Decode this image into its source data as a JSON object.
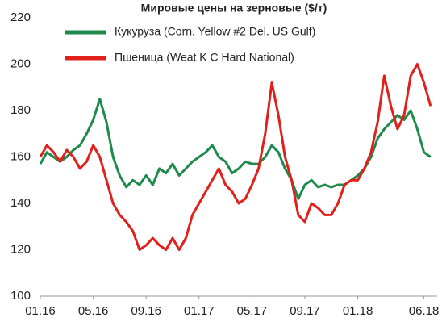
{
  "chart_data": {
    "type": "line",
    "title": "Мировые цены на зерновые ($/т)",
    "categories": [
      "01.16",
      null,
      null,
      null,
      null,
      null,
      null,
      null,
      "05.16",
      null,
      null,
      null,
      null,
      null,
      null,
      null,
      "09.16",
      null,
      null,
      null,
      null,
      null,
      null,
      null,
      "01.17",
      null,
      null,
      null,
      null,
      null,
      null,
      null,
      "05.17",
      null,
      null,
      null,
      null,
      null,
      null,
      null,
      "09.17",
      null,
      null,
      null,
      null,
      null,
      null,
      null,
      "01.18",
      null,
      null,
      null,
      null,
      null,
      null,
      null,
      null,
      null,
      "06.18",
      null
    ],
    "series": [
      {
        "name": "Кукуруза (Corn. Yellow #2 Del. US Gulf)",
        "color": "#1e8a4c",
        "values": [
          157,
          162,
          160,
          158,
          160,
          163,
          165,
          170,
          176,
          185,
          175,
          160,
          152,
          147,
          150,
          148,
          152,
          148,
          155,
          153,
          157,
          152,
          155,
          158,
          160,
          162,
          165,
          160,
          158,
          153,
          155,
          158,
          157,
          157,
          160,
          165,
          162,
          155,
          150,
          142,
          148,
          150,
          147,
          148,
          147,
          148,
          148,
          150,
          152,
          155,
          160,
          168,
          172,
          175,
          178,
          176,
          180,
          172,
          162,
          160
        ]
      },
      {
        "name": "Пшеница (Weat K C Hard National)",
        "color": "#e0201b",
        "values": [
          160,
          165,
          162,
          158,
          163,
          160,
          155,
          158,
          165,
          160,
          150,
          140,
          135,
          132,
          128,
          120,
          122,
          125,
          122,
          120,
          125,
          120,
          125,
          135,
          140,
          145,
          150,
          155,
          148,
          145,
          140,
          142,
          148,
          155,
          170,
          192,
          178,
          160,
          150,
          135,
          132,
          140,
          138,
          135,
          135,
          140,
          148,
          150,
          150,
          155,
          162,
          175,
          195,
          182,
          172,
          178,
          195,
          200,
          192,
          182
        ]
      }
    ],
    "ylim": [
      100,
      220
    ],
    "yticks": [
      100,
      120,
      140,
      160,
      180,
      200,
      220
    ],
    "grid": false,
    "legend": "top"
  }
}
